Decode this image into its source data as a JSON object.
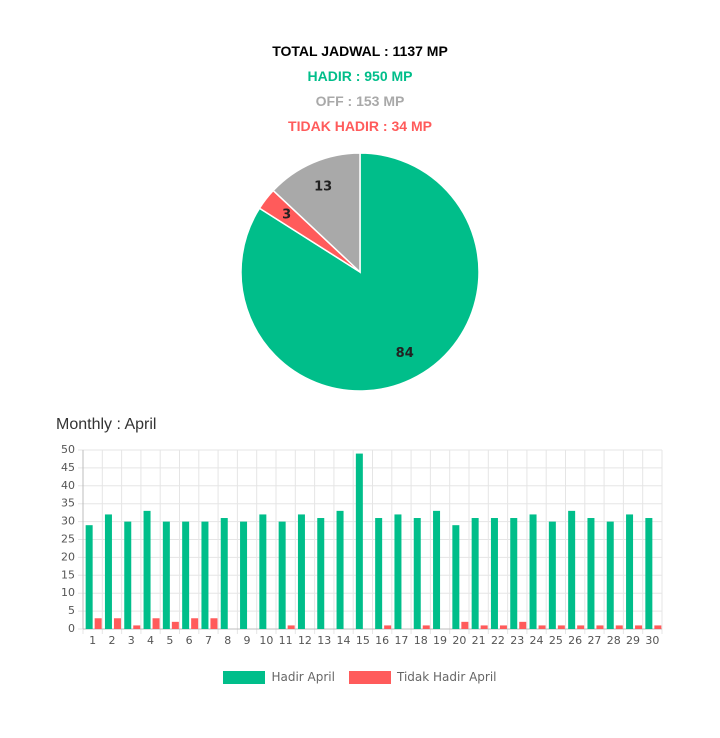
{
  "summary": {
    "total": "TOTAL JADWAL : 1137 MP",
    "hadir": "HADIR : 950 MP",
    "off": "OFF : 153 MP",
    "tidak_hadir": "TIDAK HADIR : 34 MP"
  },
  "colors": {
    "hadir": "#00BE8A",
    "off": "#A9A9A9",
    "tidak_hadir": "#FF5B5B",
    "total": "#000000"
  },
  "monthly_title": "Monthly : April",
  "chart_data": [
    {
      "type": "pie",
      "slices": [
        {
          "label": "84",
          "value": 84,
          "color": "#00BE8A"
        },
        {
          "label": "3",
          "value": 3,
          "color": "#FF5B5B"
        },
        {
          "label": "13",
          "value": 13,
          "color": "#A9A9A9"
        }
      ]
    },
    {
      "type": "bar",
      "title": "Monthly : April",
      "categories": [
        "1",
        "2",
        "3",
        "4",
        "5",
        "6",
        "7",
        "8",
        "9",
        "10",
        "11",
        "12",
        "13",
        "14",
        "15",
        "16",
        "17",
        "18",
        "19",
        "20",
        "21",
        "22",
        "23",
        "24",
        "25",
        "26",
        "27",
        "28",
        "29",
        "30"
      ],
      "series": [
        {
          "name": "Hadir April",
          "color": "#00BE8A",
          "values": [
            29,
            32,
            30,
            33,
            30,
            30,
            30,
            31,
            30,
            32,
            30,
            32,
            31,
            33,
            49,
            31,
            32,
            31,
            33,
            29,
            31,
            31,
            31,
            32,
            30,
            33,
            31,
            30,
            32,
            31
          ]
        },
        {
          "name": "Tidak Hadir April",
          "color": "#FF5B5B",
          "values": [
            3,
            3,
            1,
            3,
            2,
            3,
            3,
            0,
            0,
            0,
            1,
            0,
            0,
            0,
            0,
            1,
            0,
            1,
            0,
            2,
            1,
            1,
            2,
            1,
            1,
            1,
            1,
            1,
            1,
            1
          ]
        }
      ],
      "ylim": [
        0,
        50
      ],
      "yticks": [
        0,
        5,
        10,
        15,
        20,
        25,
        30,
        35,
        40,
        45,
        50
      ],
      "grid": true,
      "legend": "bottom"
    }
  ]
}
